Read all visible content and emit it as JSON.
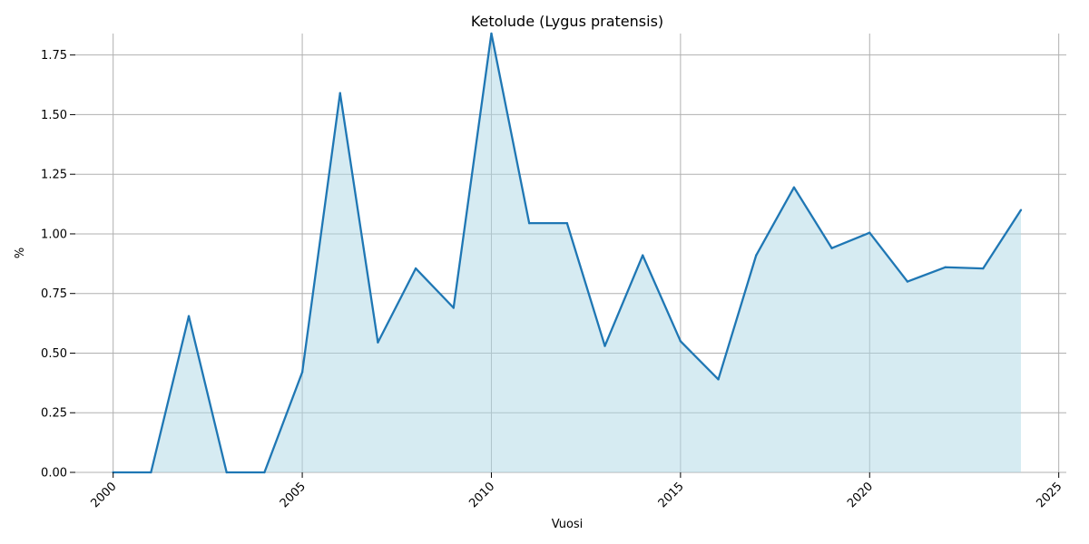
{
  "chart_data": {
    "type": "area",
    "title": "Ketolude (Lygus pratensis)",
    "xlabel": "Vuosi",
    "ylabel": "%",
    "x": [
      2000,
      2001,
      2002,
      2003,
      2004,
      2005,
      2006,
      2007,
      2008,
      2009,
      2010,
      2011,
      2012,
      2013,
      2014,
      2015,
      2016,
      2017,
      2018,
      2019,
      2020,
      2021,
      2022,
      2023,
      2024
    ],
    "values": [
      0.0,
      0.0,
      0.655,
      0.0,
      0.0,
      0.42,
      1.59,
      0.545,
      0.855,
      0.69,
      1.84,
      1.045,
      1.045,
      0.53,
      0.91,
      0.55,
      0.39,
      0.91,
      1.195,
      0.94,
      1.005,
      0.8,
      0.86,
      0.855,
      1.1
    ],
    "xlim": [
      1999,
      2025.2
    ],
    "ylim": [
      0,
      1.84
    ],
    "xticks": [
      2000,
      2005,
      2010,
      2015,
      2020,
      2025
    ],
    "yticks": [
      0.0,
      0.25,
      0.5,
      0.75,
      1.0,
      1.25,
      1.5,
      1.75
    ],
    "ytick_labels": [
      "0.00",
      "0.25",
      "0.50",
      "0.75",
      "1.00",
      "1.25",
      "1.50",
      "1.75"
    ],
    "grid": true,
    "colors": {
      "line": "#1f77b4",
      "fill": "#add8e6",
      "grid": "#b0b0b0"
    }
  }
}
